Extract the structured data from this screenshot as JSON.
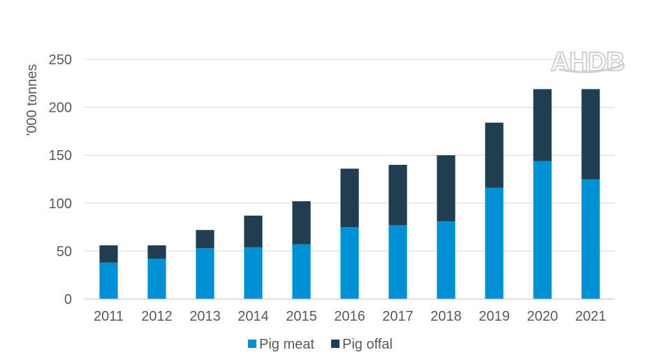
{
  "logo": {
    "text": "AHDB"
  },
  "colors": {
    "pig_meat": "#0090d4",
    "pig_offal": "#1f3e4f",
    "grid": "#d9d9d9",
    "axis": "#bfbfbf"
  },
  "chart_data": {
    "type": "bar",
    "stacked": true,
    "ylabel": "'000 tonnes",
    "ylim": [
      0,
      250
    ],
    "yticks": [
      0,
      50,
      100,
      150,
      200,
      250
    ],
    "grid": true,
    "legend_position": "bottom",
    "categories": [
      "2011",
      "2012",
      "2013",
      "2014",
      "2015",
      "2016",
      "2017",
      "2018",
      "2019",
      "2020",
      "2021"
    ],
    "series": [
      {
        "name": "Pig meat",
        "values": [
          38,
          42,
          53,
          54,
          57,
          75,
          77,
          81,
          116,
          144,
          125
        ]
      },
      {
        "name": "Pig offal",
        "values": [
          18,
          14,
          19,
          33,
          45,
          61,
          63,
          69,
          68,
          75,
          94
        ]
      }
    ]
  }
}
